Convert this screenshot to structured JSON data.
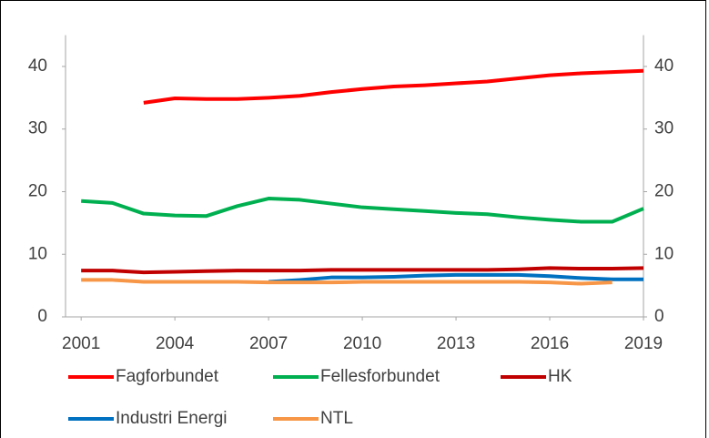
{
  "chart_data": {
    "type": "line",
    "x": [
      2001,
      2002,
      2003,
      2004,
      2005,
      2006,
      2007,
      2008,
      2009,
      2010,
      2011,
      2012,
      2013,
      2014,
      2015,
      2016,
      2017,
      2018,
      2019
    ],
    "xlim": [
      2000.5,
      2019
    ],
    "xticks": [
      2001,
      2004,
      2007,
      2010,
      2013,
      2016,
      2019
    ],
    "ylim": [
      0,
      45
    ],
    "yticks": [
      0,
      10,
      20,
      30,
      40
    ],
    "y2lim": [
      0,
      45
    ],
    "y2ticks": [
      0,
      10,
      20,
      30,
      40
    ],
    "grid": false,
    "legend": "bottom",
    "series": [
      {
        "name": "Fagforbundet",
        "color": "#ff0000",
        "values": [
          null,
          null,
          34.2,
          34.9,
          34.8,
          34.8,
          35.0,
          35.3,
          35.9,
          36.4,
          36.8,
          37.0,
          37.3,
          37.6,
          38.1,
          38.6,
          38.9,
          39.1,
          39.3
        ]
      },
      {
        "name": "Fellesforbundet",
        "color": "#00b050",
        "values": [
          18.5,
          18.2,
          16.5,
          16.2,
          16.1,
          17.7,
          18.9,
          18.7,
          18.1,
          17.5,
          17.2,
          16.9,
          16.6,
          16.4,
          15.9,
          15.5,
          15.2,
          15.2,
          17.3
        ]
      },
      {
        "name": "HK",
        "color": "#c00000",
        "values": [
          7.4,
          7.4,
          7.1,
          7.2,
          7.3,
          7.4,
          7.4,
          7.4,
          7.5,
          7.5,
          7.5,
          7.5,
          7.5,
          7.5,
          7.6,
          7.8,
          7.7,
          7.7,
          7.8
        ]
      },
      {
        "name": "Industri Energi",
        "color": "#0070c0",
        "values": [
          null,
          null,
          null,
          null,
          null,
          null,
          5.6,
          5.9,
          6.3,
          6.3,
          6.4,
          6.6,
          6.7,
          6.7,
          6.7,
          6.5,
          6.2,
          6.0,
          6.0
        ]
      },
      {
        "name": "NTL",
        "color": "#f79646",
        "values": [
          5.9,
          5.9,
          5.6,
          5.6,
          5.6,
          5.6,
          5.5,
          5.5,
          5.5,
          5.6,
          5.6,
          5.6,
          5.6,
          5.6,
          5.6,
          5.5,
          5.3,
          5.5,
          null
        ]
      }
    ]
  }
}
